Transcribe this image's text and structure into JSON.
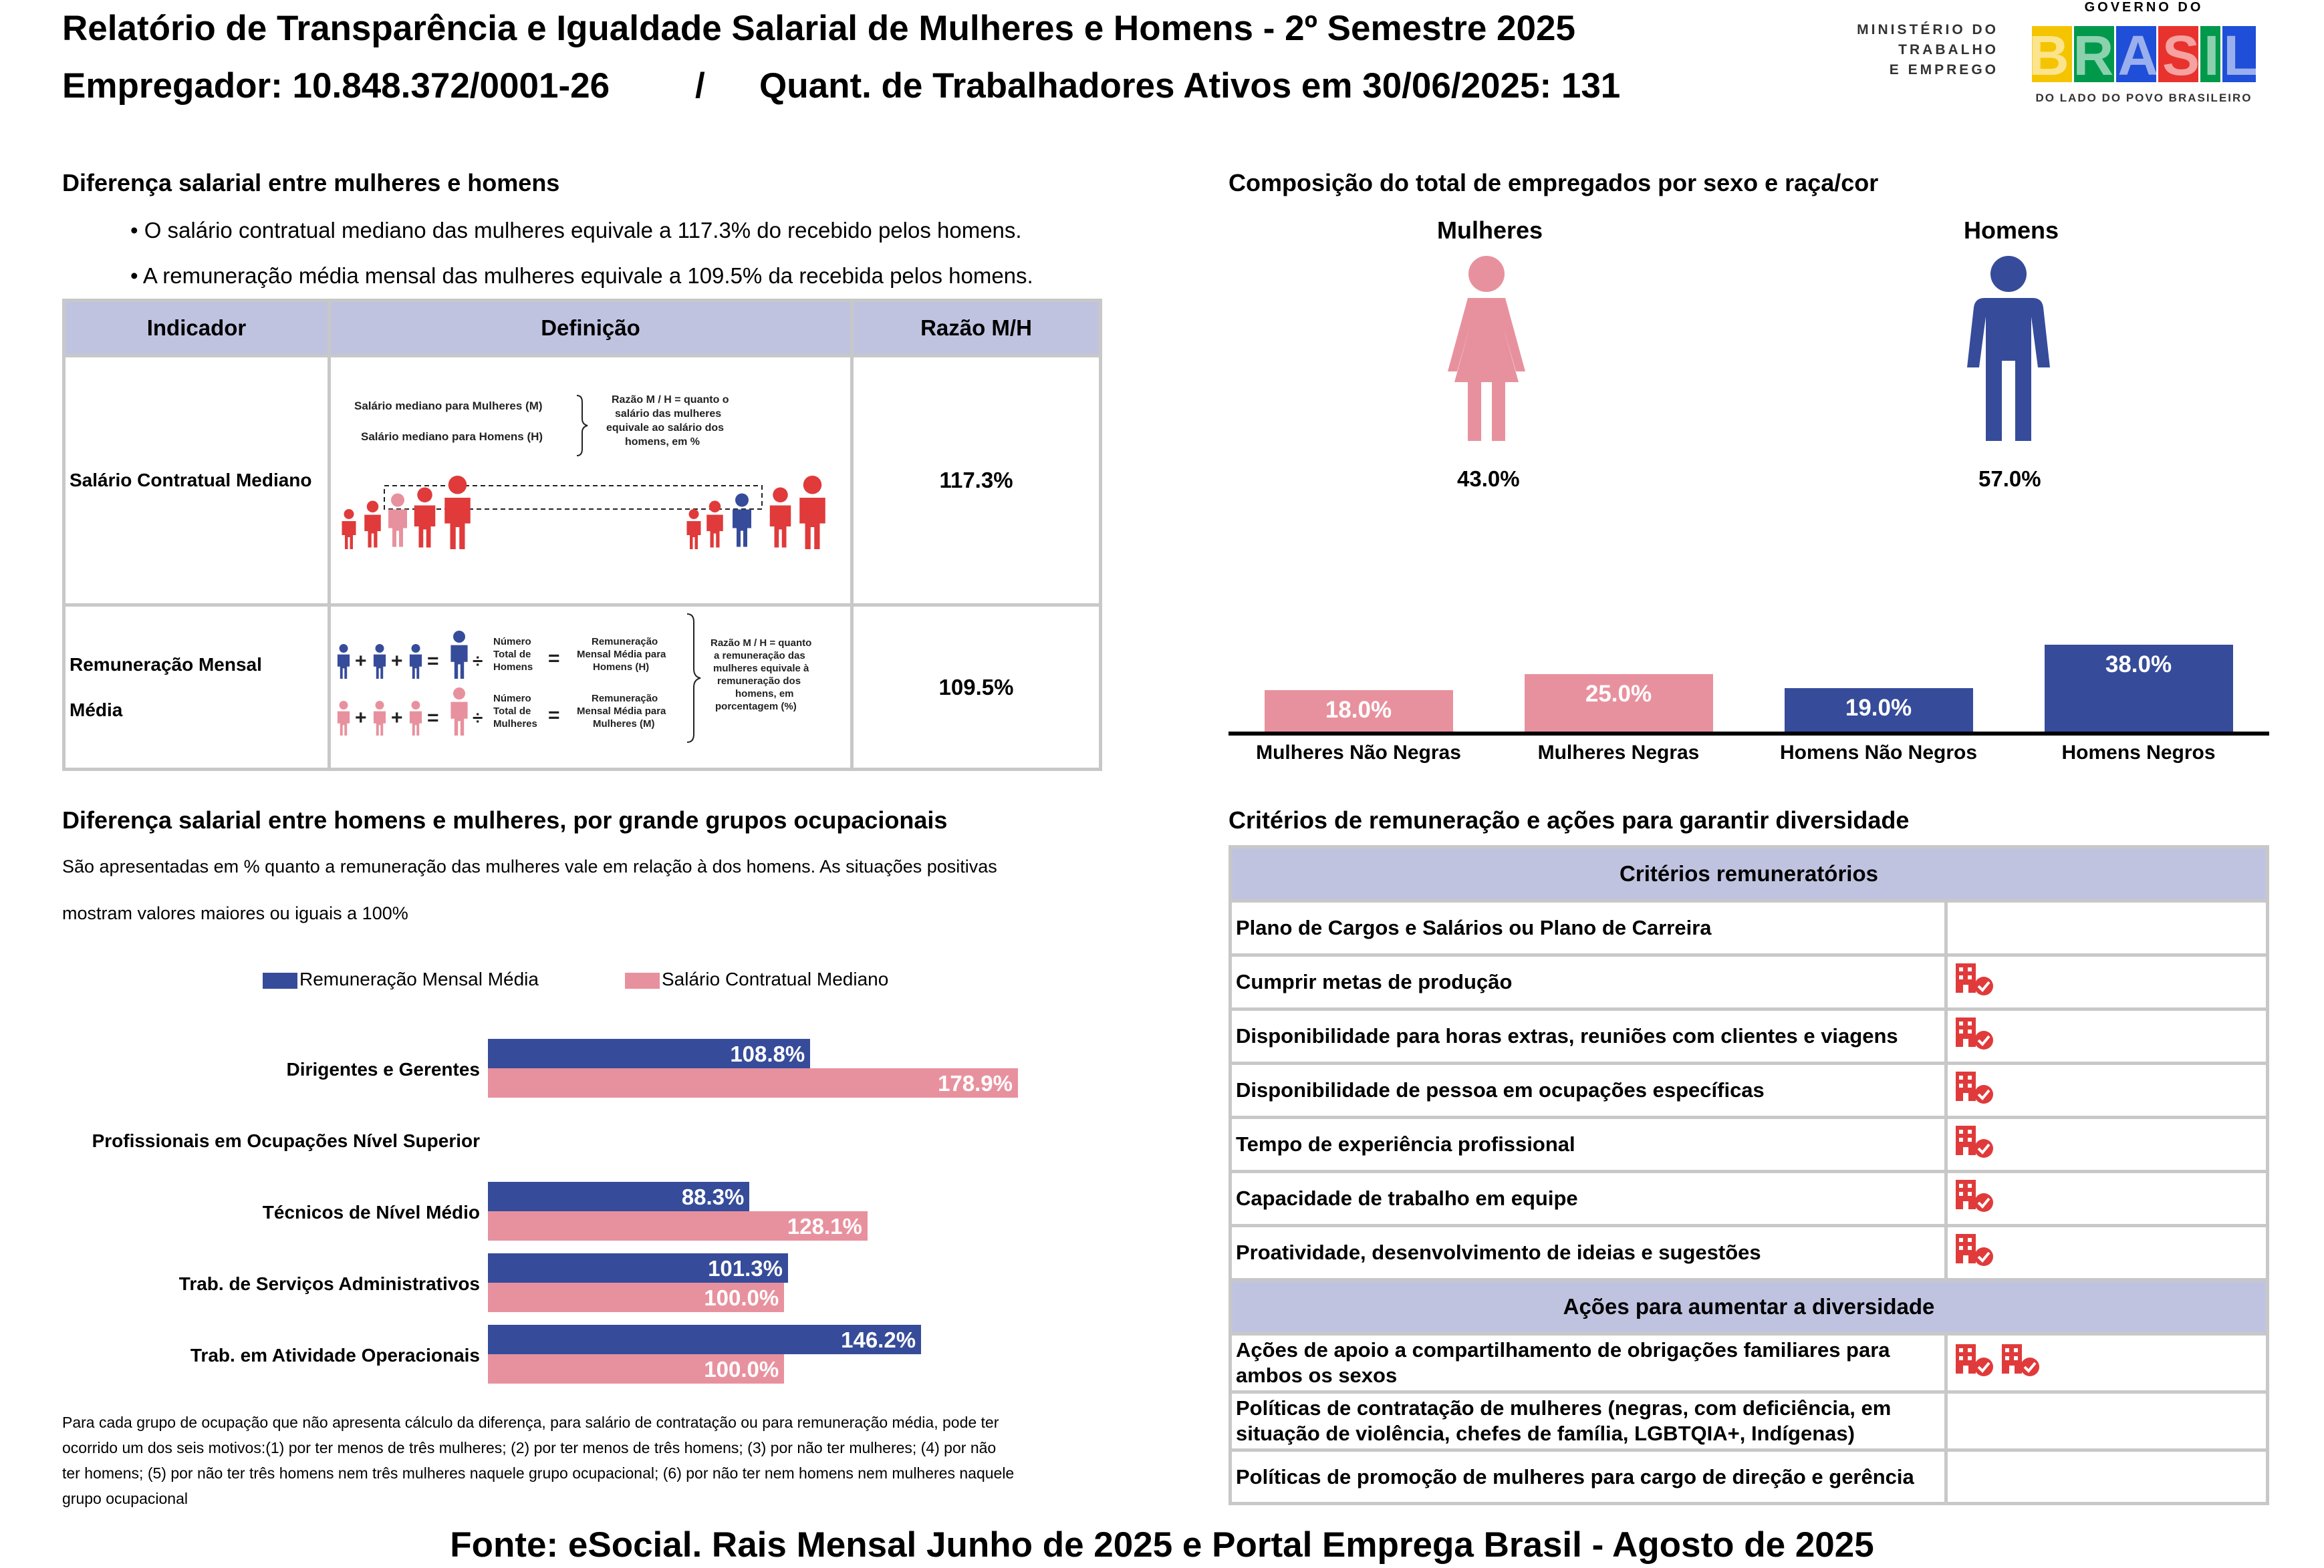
{
  "header": {
    "title": "Relatório de Transparência e Igualdade Salarial de Mulheres e Homens - 2º Semestre 2025",
    "employer": "Empregador: 10.848.372/0001-26",
    "separator": "/",
    "workers": "Quant. de Trabalhadores Ativos em 30/06/2025: 131"
  },
  "logos": {
    "ministry_line1": "MINISTÉRIO DO",
    "ministry_line2": "TRABALHO",
    "ministry_line3": "E EMPREGO",
    "gov_top": "GOVERNO DO",
    "gov_main": "BRASIL",
    "gov_bottom": "DO LADO DO POVO BRASILEIRO"
  },
  "pay_gap": {
    "title": "Diferença salarial entre mulheres e homens",
    "bullet1": "• O salário contratual mediano das mulheres equivale a 117.3% do recebido pelos homens.",
    "bullet2": "• A remuneração média mensal das mulheres equivale a 109.5% da recebida pelos homens.",
    "table": {
      "headers": [
        "Indicador",
        "Definição",
        "Razão M/H"
      ],
      "row1": {
        "indicator": "Salário Contratual Mediano",
        "ratio": "117.3%",
        "def_women": "Salário mediano para Mulheres (M)",
        "def_men": "Salário mediano para Homens (H)",
        "def_note": [
          "Razão M / H = quanto o",
          "salário das mulheres",
          "equivale ao salário dos",
          "homens, em %"
        ]
      },
      "row2": {
        "indicator_line1": "Remuneração Mensal",
        "indicator_line2": "Média",
        "ratio": "109.5%",
        "men_count": [
          "Número",
          "Total de",
          "Homens"
        ],
        "men_result": [
          "Remuneração",
          "Mensal Média para",
          "Homens (H)"
        ],
        "women_count": [
          "Número",
          "Total de",
          "Mulheres"
        ],
        "women_result": [
          "Remuneração",
          "Mensal Média para",
          "Mulheres (M)"
        ],
        "def_note": [
          "Razão M / H = quanto",
          "a remuneração das",
          "mulheres equivale à",
          "remuneração dos",
          "homens, em",
          "porcentagem (%)"
        ]
      }
    }
  },
  "composition": {
    "title": "Composição do total de empregados por sexo e raça/cor",
    "women_label": "Mulheres",
    "men_label": "Homens",
    "women_pct": "43.0%",
    "men_pct": "57.0%",
    "colors": {
      "women": "#e8919e",
      "men": "#364c9a"
    }
  },
  "chart_data": [
    {
      "type": "bar",
      "title": "Composição do total de empregados por sexo e raça/cor",
      "categories": [
        "Mulheres Não Negras",
        "Mulheres Negras",
        "Homens Não Negros",
        "Homens Negros"
      ],
      "values": [
        18.0,
        25.0,
        19.0,
        38.0
      ],
      "labels": [
        "18.0%",
        "25.0%",
        "19.0%",
        "38.0%"
      ],
      "colors": [
        "#e8919e",
        "#e8919e",
        "#364c9a",
        "#364c9a"
      ],
      "ylim": [
        0,
        38
      ]
    },
    {
      "type": "bar",
      "orientation": "horizontal",
      "title": "Diferença salarial entre homens e mulheres, por grande grupos ocupacionais",
      "categories": [
        "Dirigentes e Gerentes",
        "Profissionais em Ocupações Nível Superior",
        "Técnicos de Nível Médio",
        "Trab. de Serviços Administrativos",
        "Trab. em Atividade Operacionais"
      ],
      "series": [
        {
          "name": "Remuneração Mensal Média",
          "color": "#364c9a",
          "values": [
            108.8,
            null,
            88.3,
            101.3,
            146.2
          ],
          "labels": [
            "108.8%",
            "",
            "88.3%",
            "101.3%",
            "146.2%"
          ]
        },
        {
          "name": "Salário Contratual Mediano",
          "color": "#e8919e",
          "values": [
            178.9,
            null,
            128.1,
            100.0,
            100.0
          ],
          "labels": [
            "178.9%",
            "",
            "128.1%",
            "100.0%",
            "100.0%"
          ]
        }
      ],
      "xlim": [
        0,
        180
      ]
    }
  ],
  "occupational": {
    "title": "Diferença salarial entre homens e mulheres, por grande grupos ocupacionais",
    "subtitle_line1": "São apresentadas em % quanto a remuneração das mulheres vale em relação à dos homens. As situações positivas",
    "subtitle_line2": "mostram valores maiores ou iguais a 100%",
    "legend_avg": "Remuneração Mensal Média",
    "legend_median": "Salário Contratual Mediano",
    "footnote_lines": [
      "Para cada grupo de ocupação que não apresenta cálculo da diferença, para salário de contratação ou para remuneração média, pode ter",
      "ocorrido um dos seis motivos:(1) por ter menos de três mulheres; (2) por ter menos de três homens; (3) por não ter mulheres; (4) por não",
      "ter homens; (5) por não ter três homens nem três mulheres naquele grupo ocupacional; (6) por não ter nem homens nem mulheres naquele",
      "grupo ocupacional"
    ]
  },
  "criteria": {
    "title": "Critérios de remuneração e ações para garantir diversidade",
    "criteria_header": "Critérios remuneratórios",
    "criteria_rows": [
      {
        "label": "Plano de Cargos e Salários ou Plano de Carreira",
        "icons": 0
      },
      {
        "label": "Cumprir metas de produção",
        "icons": 1
      },
      {
        "label": "Disponibilidade para horas extras, reuniões com clientes e viagens",
        "icons": 1
      },
      {
        "label": "Disponibilidade de pessoa em ocupações específicas",
        "icons": 1
      },
      {
        "label": "Tempo de experiência profissional",
        "icons": 1
      },
      {
        "label": "Capacidade de trabalho em equipe",
        "icons": 1
      },
      {
        "label": "Proatividade, desenvolvimento de ideias e sugestões",
        "icons": 1
      }
    ],
    "actions_header": "Ações para aumentar a diversidade",
    "action1_line1": "Ações de apoio a compartilhamento de obrigações familiares para",
    "action1_line2": "ambos os sexos",
    "action2_line1": "Políticas de contratação de mulheres (negras, com deficiência, em",
    "action2_line2": "situação de violência, chefes de família, LGBTQIA+, Indígenas)",
    "action3": "Políticas de promoção de mulheres para cargo de direção e gerência",
    "icon_color": "#e03a3a"
  },
  "footer": {
    "source": "Fonte: eSocial. Rais Mensal Junho de 2025 e Portal Emprega Brasil - Agosto de 2025"
  }
}
